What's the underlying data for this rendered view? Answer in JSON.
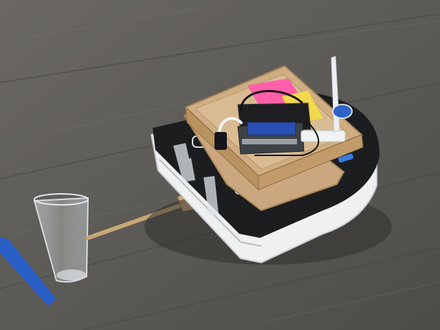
{
  "scene": {
    "description_name": "robot-vacuum-with-cardboard-tray-pushing-cup",
    "palette": {
      "floor": "#5e5c58",
      "floor_dark": "#4a4845",
      "floor_light": "#77736d",
      "robot_white": "#eef0f1",
      "robot_black": "#1c1d1f",
      "cardboard": "#caa77e",
      "cardboard_dark": "#a98558",
      "sticky_pink": "#ff5fa8",
      "sticky_yellow": "#f2d84b",
      "board_blue": "#2a4fb4",
      "tape_blue": "#2a5fc8"
    }
  }
}
